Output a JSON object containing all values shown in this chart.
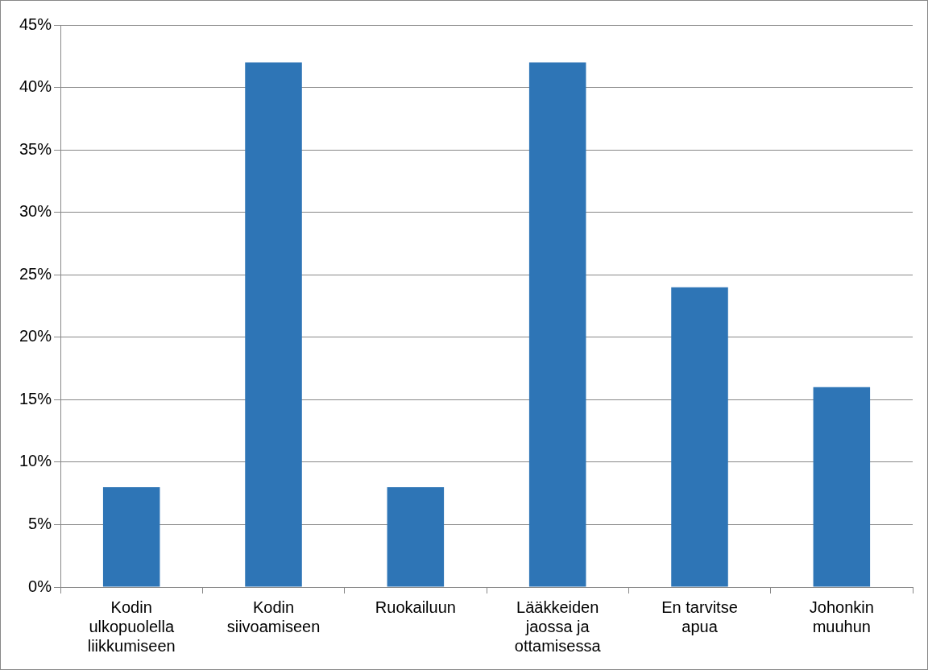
{
  "chart_data": {
    "type": "bar",
    "categories": [
      "Kodin ulkopuolella liikkumiseen",
      "Kodin siivoamiseen",
      "Ruokailuun",
      "Lääkkeiden jaossa ja ottamisessa",
      "En tarvitse apua",
      "Johonkin muuhun"
    ],
    "values": [
      8,
      42,
      8,
      42,
      24,
      16
    ],
    "color": "#2e75b6",
    "ylim": [
      0,
      45
    ],
    "yticks": [
      {
        "value": 0,
        "label": "0%"
      },
      {
        "value": 5,
        "label": "5%"
      },
      {
        "value": 10,
        "label": "10%"
      },
      {
        "value": 15,
        "label": "15%"
      },
      {
        "value": 20,
        "label": "20%"
      },
      {
        "value": 25,
        "label": "25%"
      },
      {
        "value": 30,
        "label": "30%"
      },
      {
        "value": 35,
        "label": "35%"
      },
      {
        "value": 40,
        "label": "40%"
      },
      {
        "value": 45,
        "label": "45%"
      }
    ],
    "grid": "y",
    "legend": false
  }
}
